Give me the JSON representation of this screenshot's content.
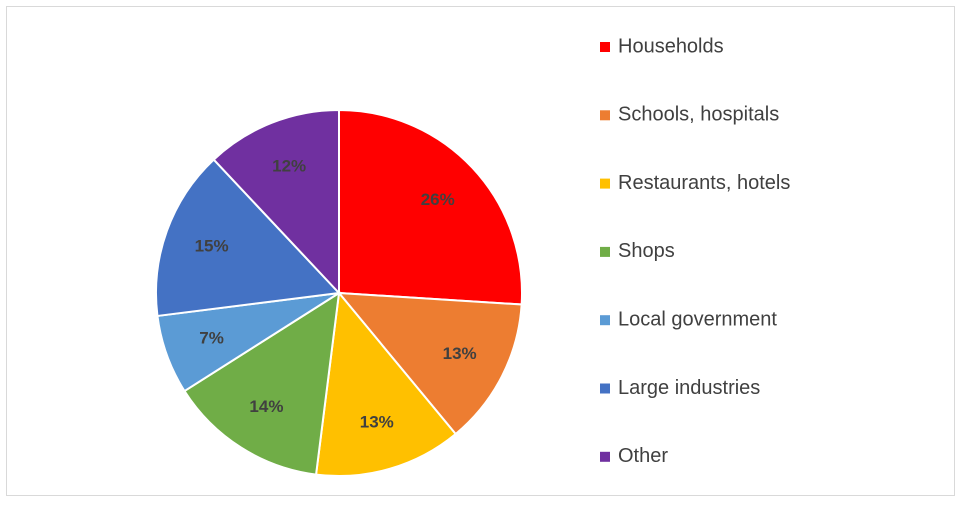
{
  "chart_data": {
    "type": "pie",
    "categories": [
      "Households",
      "Schools, hospitals",
      "Restaurants, hotels",
      "Shops",
      "Local government",
      "Large industries",
      "Other"
    ],
    "values": [
      26,
      13,
      13,
      14,
      7,
      15,
      12
    ],
    "value_labels": [
      "26%",
      "13%",
      "13%",
      "14%",
      "7%",
      "15%",
      "12%"
    ],
    "colors": [
      "#ff0000",
      "#ed7d31",
      "#ffc000",
      "#70ad47",
      "#5b9bd5",
      "#4472c4",
      "#7030a0"
    ],
    "legend": "right"
  }
}
